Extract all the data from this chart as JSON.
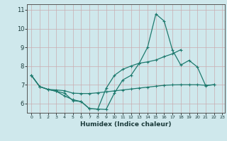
{
  "title": "",
  "xlabel": "Humidex (Indice chaleur)",
  "background_color": "#cfe8ec",
  "grid_color": "#c8adb0",
  "line_color": "#1e7a6e",
  "xlim": [
    -0.5,
    23.3
  ],
  "ylim": [
    5.5,
    11.3
  ],
  "yticks": [
    6,
    7,
    8,
    9,
    10,
    11
  ],
  "xticks": [
    0,
    1,
    2,
    3,
    4,
    5,
    6,
    7,
    8,
    9,
    10,
    11,
    12,
    13,
    14,
    15,
    16,
    17,
    18,
    19,
    20,
    21,
    22,
    23
  ],
  "series": [
    {
      "x": [
        0,
        1,
        2,
        3,
        4,
        5,
        6,
        7,
        8,
        9,
        10,
        11,
        12,
        13,
        14,
        15,
        16,
        17,
        18,
        19,
        20,
        21,
        22
      ],
      "y": [
        7.5,
        6.9,
        6.75,
        6.65,
        6.4,
        6.2,
        6.1,
        5.72,
        5.7,
        5.68,
        6.55,
        7.25,
        7.5,
        8.15,
        9.0,
        10.78,
        10.4,
        8.85,
        8.05,
        8.3,
        7.95,
        6.95,
        7.0
      ]
    },
    {
      "x": [
        0,
        1,
        2,
        3,
        4,
        5,
        6,
        7,
        8,
        9,
        10,
        11,
        12,
        13,
        14,
        15,
        16,
        17,
        18
      ],
      "y": [
        7.5,
        6.9,
        6.75,
        6.65,
        6.55,
        6.15,
        6.1,
        5.72,
        5.7,
        6.8,
        7.5,
        7.82,
        8.0,
        8.15,
        8.22,
        8.32,
        8.5,
        8.65,
        8.87
      ]
    },
    {
      "x": [
        0,
        1,
        2,
        3,
        4,
        5,
        6,
        7,
        8,
        9,
        10,
        11,
        12,
        13,
        14,
        15,
        16,
        17,
        18,
        19,
        20,
        21,
        22
      ],
      "y": [
        7.5,
        6.9,
        6.75,
        6.72,
        6.68,
        6.55,
        6.53,
        6.53,
        6.57,
        6.62,
        6.67,
        6.72,
        6.77,
        6.82,
        6.87,
        6.92,
        6.97,
        6.99,
        7.0,
        7.0,
        7.0,
        6.97,
        7.0
      ]
    }
  ]
}
